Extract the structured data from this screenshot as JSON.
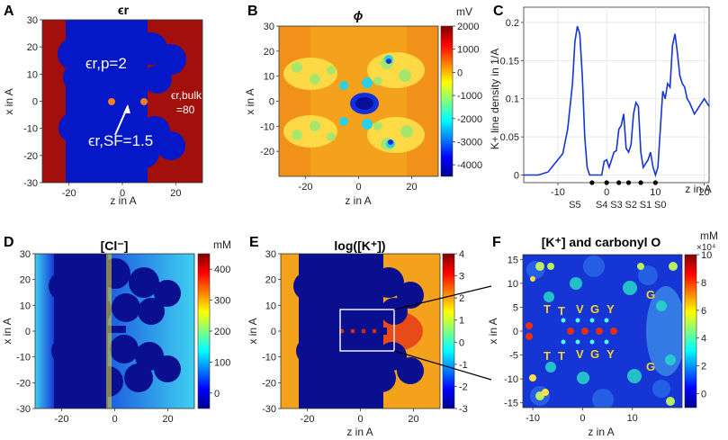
{
  "panel_labels": [
    "A",
    "B",
    "C",
    "D",
    "E",
    "F"
  ],
  "colors": {
    "protein": "#0418c8",
    "bulk": "#a30f0a",
    "line": "#1535d4",
    "dark": "#0a0f8f",
    "orange": "#f4a21c"
  },
  "chart_data": [
    {
      "id": "A",
      "type": "heatmap",
      "title": "ϵr",
      "xlabel": "z in A",
      "ylabel": "x in A",
      "xticks": [
        -20,
        0,
        20
      ],
      "yticks": [
        30,
        20,
        10,
        0,
        -10,
        -20,
        -30
      ],
      "xlim": [
        -30,
        30
      ],
      "ylim": [
        -30,
        30
      ],
      "annotations": {
        "eps_p": "ϵr,p=2",
        "eps_bulk_line1": "ϵr,bulk",
        "eps_bulk_line2": "=80",
        "eps_sf": "ϵr,SF=1.5"
      }
    },
    {
      "id": "B",
      "type": "heatmap",
      "title": "ϕ",
      "xlabel": "z in A",
      "ylabel": "x in A",
      "xticks": [
        -20,
        0,
        20
      ],
      "yticks": [
        30,
        20,
        10,
        0,
        -10,
        -20
      ],
      "xlim": [
        -30,
        30
      ],
      "ylim": [
        -30,
        30
      ],
      "colorbar": {
        "label": "mV",
        "ticks": [
          2000,
          1000,
          0,
          -1000,
          -2000,
          -3000,
          -4000
        ],
        "range": [
          -4500,
          2000
        ]
      }
    },
    {
      "id": "C",
      "type": "line",
      "xlabel": "z in A",
      "ylabel": "K+ line density in 1/A",
      "xticks": [
        -10,
        0,
        10,
        20
      ],
      "yticks": [
        0,
        0.05,
        0.1,
        0.15,
        0.2
      ],
      "xlim": [
        -17,
        21
      ],
      "ylim": [
        -0.01,
        0.22
      ],
      "x": [
        -17,
        -14,
        -12,
        -10,
        -9,
        -8,
        -7,
        -6.5,
        -6,
        -5.5,
        -5,
        -4.5,
        -4,
        -3.5,
        -3,
        -2,
        -1,
        -0.5,
        0,
        0.5,
        1,
        1.5,
        2,
        2.5,
        3,
        3.5,
        4,
        4.5,
        5,
        5.5,
        6,
        6.5,
        7,
        7.5,
        8,
        8.5,
        9,
        9.5,
        10,
        10.5,
        11,
        11.5,
        12,
        12.5,
        13,
        13.5,
        14,
        14.5,
        15,
        15.5,
        16,
        16.5,
        17,
        18,
        19,
        20,
        21
      ],
      "y": [
        0,
        0,
        0.004,
        0.02,
        0.028,
        0.06,
        0.12,
        0.175,
        0.195,
        0.185,
        0.13,
        0.05,
        0.01,
        0,
        0,
        0,
        0,
        0.018,
        0.02,
        0.01,
        0.02,
        0.03,
        0.032,
        0.06,
        0.065,
        0.08,
        0.035,
        0.03,
        0.04,
        0.08,
        0.095,
        0.09,
        0.03,
        0.01,
        0.015,
        0.02,
        0.03,
        0.01,
        0,
        0.01,
        0.06,
        0.11,
        0.1,
        0.12,
        0.115,
        0.17,
        0.185,
        0.16,
        0.13,
        0.12,
        0.115,
        0.1,
        0.095,
        0.08,
        0.09,
        0.1,
        0.09
      ],
      "site_labels": [
        "S5",
        "S4",
        "S3",
        "S2",
        "S1",
        "S0"
      ],
      "site_positions": [
        -6.5,
        -1,
        2,
        5,
        8,
        11
      ],
      "dot_positions": [
        -3,
        0,
        2.5,
        4.5,
        7,
        10
      ]
    },
    {
      "id": "D",
      "type": "heatmap",
      "title": "[Cl⁻]",
      "xlabel": "",
      "ylabel": "x in A",
      "xticks": [
        -20,
        0,
        20
      ],
      "yticks": [
        30,
        20,
        10,
        0,
        -10,
        -20,
        -30
      ],
      "xlim": [
        -30,
        30
      ],
      "ylim": [
        -30,
        30
      ],
      "colorbar": {
        "label": "mM",
        "ticks": [
          400,
          300,
          200,
          100,
          0
        ],
        "range": [
          -50,
          450
        ]
      }
    },
    {
      "id": "E",
      "type": "heatmap",
      "title": "log([K⁺])",
      "xlabel": "z in A",
      "ylabel": "x in A",
      "xticks": [
        -20,
        0,
        20
      ],
      "yticks": [
        30,
        20,
        10,
        0,
        -10,
        -20,
        -30
      ],
      "xlim": [
        -30,
        30
      ],
      "ylim": [
        -30,
        30
      ],
      "colorbar": {
        "label": "",
        "ticks": [
          4,
          3,
          2,
          1,
          0,
          -1,
          -2,
          -3
        ],
        "range": [
          -3,
          4
        ]
      }
    },
    {
      "id": "F",
      "type": "heatmap",
      "title": "[K⁺] and carbonyl O",
      "xlabel": "z in A",
      "ylabel": "x in A",
      "xticks": [
        -10,
        0,
        10
      ],
      "yticks": [
        15,
        10,
        5,
        0,
        -5,
        -10,
        -15
      ],
      "xlim": [
        -12,
        20
      ],
      "ylim": [
        -16,
        16
      ],
      "colorbar": {
        "label": "mM",
        "exponent": "×10⁴",
        "ticks": [
          10,
          8,
          6,
          4,
          2,
          0
        ],
        "range": [
          -1,
          10
        ]
      },
      "residues_top": [
        "T",
        "T",
        "V",
        "G",
        "Y",
        "G"
      ],
      "residues_bottom": [
        "T",
        "T",
        "V",
        "G",
        "Y",
        "G"
      ]
    }
  ]
}
